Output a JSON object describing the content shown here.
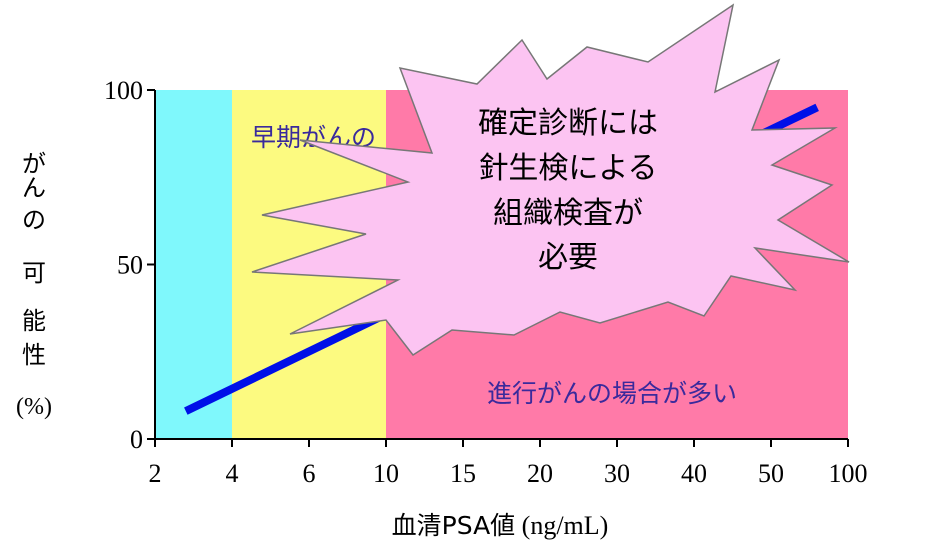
{
  "chart_data": {
    "type": "line",
    "xlabel_parts": [
      "血清PSA値",
      " (ng/mL)"
    ],
    "ylabel_chars": [
      "が",
      "ん",
      "の",
      "",
      "可",
      "能",
      "性"
    ],
    "ylabel_unit": "(%)",
    "ylim": [
      0,
      100
    ],
    "yticks": [
      0,
      50,
      100
    ],
    "xtick_labels": [
      "2",
      "4",
      "6",
      "10",
      "15",
      "20",
      "30",
      "40",
      "50",
      "100"
    ],
    "xtick_positions": [
      0,
      1,
      2,
      3,
      4,
      5,
      6,
      7,
      8,
      9
    ],
    "zones": [
      {
        "from": 0,
        "to": 1,
        "color": "#7ff8fc"
      },
      {
        "from": 1,
        "to": 3,
        "color": "#fcfa80"
      },
      {
        "from": 3,
        "to": 9,
        "color": "#ff7aa8"
      }
    ],
    "zone_labels": [
      {
        "text": "早期がんの",
        "color": "#3a2a9c"
      },
      {
        "text": "進行がんの場合が多い",
        "color": "#3a2a9c"
      }
    ],
    "series": [
      {
        "color": "#0010e8",
        "points": [
          {
            "x": 0.4,
            "y": 8
          },
          {
            "x": 3.4,
            "y": 40
          },
          {
            "x": 8.6,
            "y": 95
          }
        ]
      }
    ],
    "callout": {
      "lines": [
        "確定診断には",
        "針生検による",
        "組織検査が",
        "必要"
      ],
      "fill": "#fcc4f2",
      "stroke": "#777777"
    }
  }
}
